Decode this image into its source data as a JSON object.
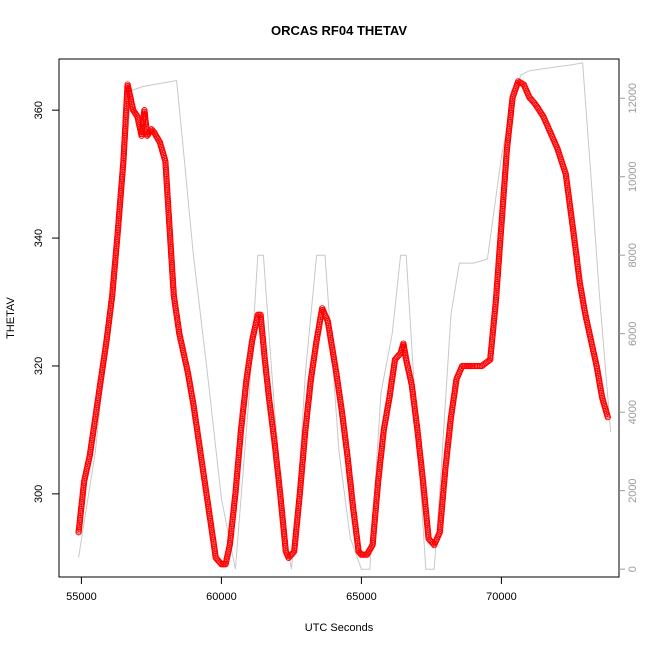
{
  "chart_data": {
    "type": "scatter",
    "title": "ORCAS RF04 THETAV",
    "xlabel": "UTC Seconds",
    "ylabel": "THETAV",
    "xlim": [
      54200,
      74200
    ],
    "ylim": [
      287,
      368
    ],
    "y2lim": [
      -200,
      13000
    ],
    "x_ticks": [
      55000,
      60000,
      65000,
      70000
    ],
    "y_ticks": [
      300,
      320,
      340,
      360
    ],
    "y2_ticks": [
      0,
      2000,
      4000,
      6000,
      8000,
      10000,
      12000
    ],
    "colors": {
      "points": "#ff0000",
      "secondary_line": "#c8c8c8",
      "axis": "#000000",
      "secondary_axis": "#9a9a9a"
    },
    "series": [
      {
        "marker": "open-circle",
        "color": "#ff0000",
        "x": [
          54900,
          55100,
          55300,
          55500,
          55700,
          55900,
          56100,
          56300,
          56500,
          56650,
          56750,
          56850,
          57000,
          57150,
          57250,
          57350,
          57500,
          57600,
          57800,
          58000,
          58100,
          58200,
          58300,
          58400,
          58500,
          58650,
          58800,
          59000,
          59200,
          59400,
          59600,
          59800,
          60000,
          60150,
          60300,
          60500,
          60700,
          60900,
          61100,
          61300,
          61400,
          61550,
          61700,
          61900,
          62100,
          62300,
          62400,
          62600,
          62800,
          63000,
          63200,
          63400,
          63600,
          63800,
          63950,
          64100,
          64300,
          64500,
          64700,
          64900,
          65000,
          65200,
          65400,
          65600,
          65800,
          66000,
          66200,
          66400,
          66500,
          66600,
          66800,
          67000,
          67200,
          67400,
          67600,
          67800,
          68000,
          68200,
          68400,
          68600,
          68800,
          69000,
          69300,
          69600,
          69800,
          70000,
          70200,
          70400,
          70600,
          70800,
          71000,
          71200,
          71500,
          71800,
          72000,
          72300,
          72600,
          72800,
          73000,
          73200,
          73400,
          73600,
          73800
        ],
        "y": [
          294,
          302,
          306,
          312,
          318,
          324,
          331,
          341,
          352,
          364,
          362,
          360,
          359,
          356,
          360,
          356,
          357,
          356.5,
          355,
          352,
          345,
          338,
          331,
          328,
          325,
          322,
          319,
          314,
          308,
          302,
          296,
          290,
          289,
          289,
          292,
          300,
          310,
          318,
          324,
          328,
          328,
          321,
          315,
          308,
          300,
          291,
          290,
          291,
          300,
          310,
          318,
          324,
          329,
          327,
          323,
          319,
          313,
          306,
          298,
          291,
          290.5,
          290.5,
          292,
          302,
          310,
          315,
          321,
          322,
          323.5,
          321,
          317,
          310,
          302,
          293,
          292,
          294,
          304,
          312,
          318,
          320,
          320,
          320,
          320,
          321,
          330,
          342,
          354,
          362,
          364.5,
          364,
          362,
          361,
          359,
          356,
          354,
          350,
          340,
          333,
          328,
          324,
          320,
          315,
          312
        ]
      },
      {
        "marker": "line",
        "axis": "right",
        "color": "#c8c8c8",
        "x": [
          54900,
          55500,
          56000,
          56500,
          56800,
          57200,
          57600,
          58000,
          58400,
          58600,
          59000,
          59500,
          60000,
          60500,
          61000,
          61300,
          61500,
          61800,
          62200,
          62500,
          62700,
          63000,
          63400,
          63700,
          63900,
          64200,
          64600,
          65000,
          65300,
          65700,
          66100,
          66400,
          66600,
          66900,
          67300,
          67600,
          67800,
          68200,
          68500,
          69000,
          69500,
          70000,
          70400,
          70700,
          71000,
          71500,
          72000,
          72500,
          72900,
          73200,
          73500,
          73900
        ],
        "y": [
          300,
          3000,
          6500,
          10000,
          12200,
          12300,
          12350,
          12400,
          12450,
          11000,
          8000,
          5000,
          1800,
          0,
          4500,
          8000,
          8000,
          5000,
          1300,
          0,
          1500,
          5000,
          8000,
          8000,
          6000,
          3000,
          800,
          0,
          0,
          4500,
          6000,
          8000,
          8000,
          4500,
          0,
          0,
          2000,
          6500,
          7800,
          7800,
          7900,
          10500,
          12000,
          12600,
          12700,
          12750,
          12800,
          12850,
          12900,
          10000,
          7000,
          3500
        ]
      }
    ]
  }
}
